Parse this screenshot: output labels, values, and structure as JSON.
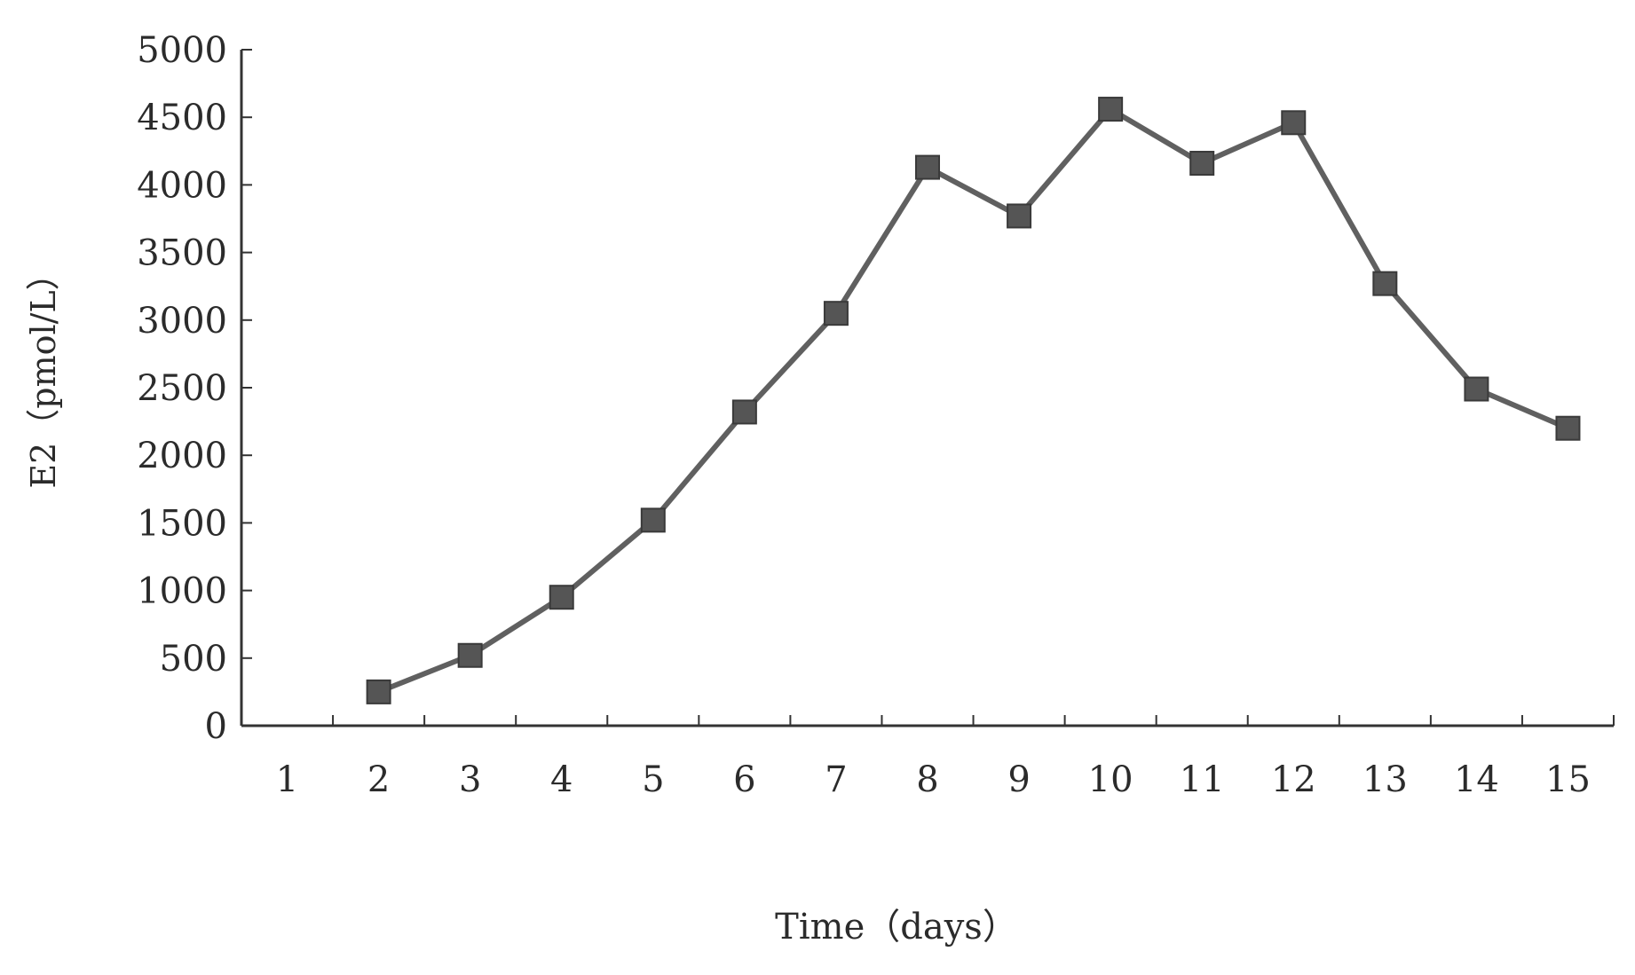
{
  "chart_data": {
    "type": "line",
    "title": "",
    "xlabel": "Time（days）",
    "ylabel": "E2（pmol/L）",
    "x_ticks": [
      "1",
      "2",
      "3",
      "4",
      "5",
      "6",
      "7",
      "8",
      "9",
      "10",
      "11",
      "12",
      "13",
      "14",
      "15"
    ],
    "y_ticks": [
      "0",
      "500",
      "1000",
      "1500",
      "2000",
      "2500",
      "3000",
      "3500",
      "4000",
      "4500",
      "5000"
    ],
    "ylim": [
      0,
      5000
    ],
    "grid": false,
    "legend": "none",
    "marker": "square",
    "series": [
      {
        "x": [
          2,
          3,
          4,
          5,
          6,
          7,
          8,
          9,
          10,
          11,
          12,
          13,
          14,
          15
        ],
        "values": [
          250,
          520,
          950,
          1520,
          2320,
          3050,
          4130,
          3770,
          4560,
          4160,
          4460,
          3270,
          2490,
          2200
        ],
        "color": "#606060"
      }
    ]
  }
}
